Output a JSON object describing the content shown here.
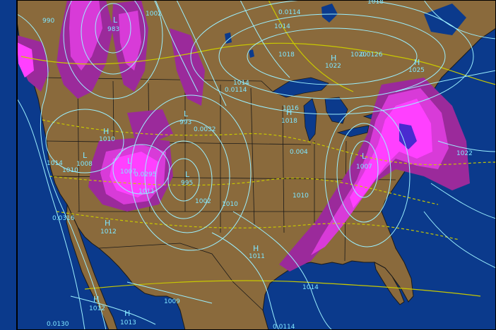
{
  "map": {
    "colors": {
      "ocean": "#0b3a8c",
      "land": "#8a6a3c",
      "isobar": "#9cf0ff",
      "thickness": "#c8c800",
      "precip_light": "#9b2a9b",
      "precip_mod": "#d83bd8",
      "precip_heavy": "#ff40ff",
      "precip_extreme": "#4a2ad0",
      "border": "#111111",
      "frame": "#000000"
    },
    "pressure_centers": [
      {
        "symbol": "H",
        "value": "1022"
      },
      {
        "symbol": "H",
        "value": "1025"
      },
      {
        "symbol": "H",
        "value": "1018"
      },
      {
        "symbol": "H",
        "value": "1010"
      },
      {
        "symbol": "H",
        "value": "1012"
      },
      {
        "symbol": "H",
        "value": "1012"
      },
      {
        "symbol": "H",
        "value": "1013"
      },
      {
        "symbol": "H",
        "value": "1011"
      },
      {
        "symbol": "L",
        "value": "983"
      },
      {
        "symbol": "L",
        "value": "1007"
      },
      {
        "symbol": "L",
        "value": "1008"
      },
      {
        "symbol": "L",
        "value": "995"
      },
      {
        "symbol": "L",
        "value": "1007"
      },
      {
        "symbol": "L",
        "value": "993"
      }
    ],
    "isobar_labels": [
      "990",
      "1002",
      "1014",
      "1018",
      "1010",
      "1014",
      "1010",
      "1002",
      "1010",
      "1014",
      "1022",
      "1014",
      "1016",
      "1020",
      "1009",
      "1011",
      "1018"
    ],
    "thickness_labels": [
      "0.0114",
      "0.0032",
      "0.004",
      "0.0130",
      "0.0114",
      "0.0126",
      "0.0114",
      "0.0316",
      "0.0295"
    ]
  }
}
